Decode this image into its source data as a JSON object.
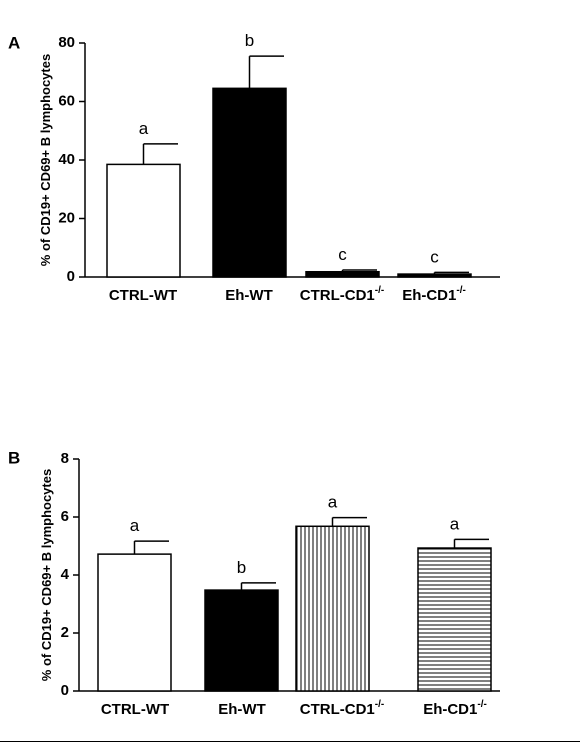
{
  "chart_data": [
    {
      "type": "bar",
      "panel": "A",
      "ylabel": "% of CD19+ CD69+ B lymphocytes",
      "ylim": [
        0,
        80
      ],
      "yticks": [
        0,
        20,
        40,
        60,
        80
      ],
      "categories": [
        {
          "base": "CTRL-WT",
          "sup": ""
        },
        {
          "base": "Eh-WT",
          "sup": ""
        },
        {
          "base": "CTRL-CD1",
          "sup": "-/-"
        },
        {
          "base": "Eh-CD1",
          "sup": "-/-"
        }
      ],
      "values": [
        38.5,
        64.5,
        1.8,
        1.0
      ],
      "errors": [
        7.0,
        11.0,
        0.6,
        0.6
      ],
      "significance": [
        "a",
        "b",
        "c",
        "c"
      ],
      "fills": [
        "white",
        "black",
        "black",
        "black"
      ]
    },
    {
      "type": "bar",
      "panel": "B",
      "ylabel": "% of CD19+ CD69+ B lymphocytes",
      "ylim": [
        0,
        8
      ],
      "yticks": [
        0,
        2,
        4,
        6,
        8
      ],
      "categories": [
        {
          "base": "CTRL-WT",
          "sup": ""
        },
        {
          "base": "Eh-WT",
          "sup": ""
        },
        {
          "base": "CTRL-CD1",
          "sup": "-/-"
        },
        {
          "base": "Eh-CD1",
          "sup": "-/-"
        }
      ],
      "values": [
        4.72,
        3.48,
        5.68,
        4.93
      ],
      "errors": [
        0.45,
        0.25,
        0.3,
        0.3
      ],
      "significance": [
        "a",
        "b",
        "a",
        "a"
      ],
      "fills": [
        "white",
        "black",
        "vertical-stripes",
        "horizontal-stripes"
      ]
    }
  ]
}
